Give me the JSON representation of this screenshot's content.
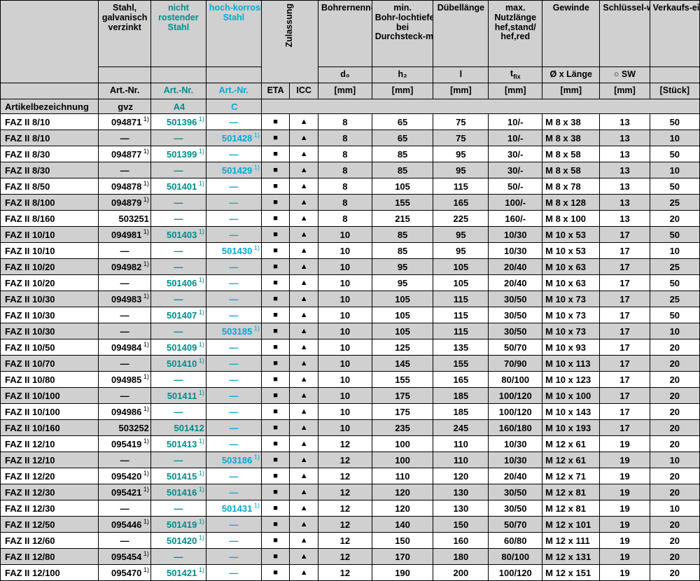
{
  "headers": {
    "h0": "",
    "h1": "Stahl, galvanisch verzinkt",
    "h2": "nicht rostender Stahl",
    "h3": "hoch-korrosions-beständiger Stahl",
    "h4": "Zulassung",
    "h5": "Bohrernenn-durchmes-ser",
    "h6": "min. Bohr-lochtiefe bei Durchsteck-montage",
    "h7": "Dübellänge",
    "h8": "max. Nutzlänge hef,stand/ hef,red",
    "h9": "Gewinde",
    "h10": "Schlüssel-weite",
    "h11": "Verkaufs-einheit",
    "sym_d0": "d₀",
    "sym_h2": "h₂",
    "sym_l": "l",
    "sym_tfix": "t",
    "sym_tfix_sub": "fix",
    "sym_oxl": "Ø x Länge",
    "sym_sw": "○ SW",
    "art": "Art.-Nr.",
    "eta": "ETA",
    "icc": "ICC",
    "mm": "[mm]",
    "stk": "[Stück]",
    "gvz": "gvz",
    "a4": "A4",
    "cc": "C",
    "artlabel": "Artikelbezeichnung"
  },
  "note": "1)",
  "square": "■",
  "triangle": "▲",
  "dash": "—",
  "rows": [
    {
      "n": "FAZ II 8/10",
      "g": "094871",
      "gN": true,
      "a": "501396",
      "aN": true,
      "c": "—",
      "cN": false,
      "eta": true,
      "icc": true,
      "d0": "8",
      "h2": "65",
      "l": "75",
      "tf": "10/-",
      "gw": "M 8 x 38",
      "sw": "13",
      "ve": "50"
    },
    {
      "n": "FAZ II 8/10",
      "g": "—",
      "gN": false,
      "a": "—",
      "aN": false,
      "c": "501428",
      "cN": true,
      "eta": true,
      "icc": true,
      "d0": "8",
      "h2": "65",
      "l": "75",
      "tf": "10/-",
      "gw": "M 8 x 38",
      "sw": "13",
      "ve": "10"
    },
    {
      "n": "FAZ II 8/30",
      "g": "094877",
      "gN": true,
      "a": "501399",
      "aN": true,
      "c": "—",
      "cN": false,
      "eta": true,
      "icc": true,
      "d0": "8",
      "h2": "85",
      "l": "95",
      "tf": "30/-",
      "gw": "M 8 x 58",
      "sw": "13",
      "ve": "50"
    },
    {
      "n": "FAZ II 8/30",
      "g": "—",
      "gN": false,
      "a": "—",
      "aN": false,
      "c": "501429",
      "cN": true,
      "eta": true,
      "icc": true,
      "d0": "8",
      "h2": "85",
      "l": "95",
      "tf": "30/-",
      "gw": "M 8 x 58",
      "sw": "13",
      "ve": "10"
    },
    {
      "n": "FAZ II 8/50",
      "g": "094878",
      "gN": true,
      "a": "501401",
      "aN": true,
      "c": "—",
      "cN": false,
      "eta": true,
      "icc": true,
      "d0": "8",
      "h2": "105",
      "l": "115",
      "tf": "50/-",
      "gw": "M 8 x 78",
      "sw": "13",
      "ve": "50"
    },
    {
      "n": "FAZ II 8/100",
      "g": "094879",
      "gN": true,
      "a": "—",
      "aN": false,
      "c": "—",
      "cN": false,
      "eta": true,
      "icc": true,
      "d0": "8",
      "h2": "155",
      "l": "165",
      "tf": "100/-",
      "gw": "M 8 x 128",
      "sw": "13",
      "ve": "25"
    },
    {
      "n": "FAZ II 8/160",
      "g": "503251",
      "gN": false,
      "a": "—",
      "aN": false,
      "c": "—",
      "cN": false,
      "eta": true,
      "icc": true,
      "d0": "8",
      "h2": "215",
      "l": "225",
      "tf": "160/-",
      "gw": "M 8 x 100",
      "sw": "13",
      "ve": "20"
    },
    {
      "n": "FAZ II 10/10",
      "g": "094981",
      "gN": true,
      "a": "501403",
      "aN": true,
      "c": "—",
      "cN": false,
      "eta": true,
      "icc": true,
      "d0": "10",
      "h2": "85",
      "l": "95",
      "tf": "10/30",
      "gw": "M 10 x 53",
      "sw": "17",
      "ve": "50"
    },
    {
      "n": "FAZ II 10/10",
      "g": "—",
      "gN": false,
      "a": "—",
      "aN": false,
      "c": "501430",
      "cN": true,
      "eta": true,
      "icc": true,
      "d0": "10",
      "h2": "85",
      "l": "95",
      "tf": "10/30",
      "gw": "M 10 x 53",
      "sw": "17",
      "ve": "10"
    },
    {
      "n": "FAZ II 10/20",
      "g": "094982",
      "gN": true,
      "a": "—",
      "aN": false,
      "c": "—",
      "cN": false,
      "eta": true,
      "icc": true,
      "d0": "10",
      "h2": "95",
      "l": "105",
      "tf": "20/40",
      "gw": "M 10 x 63",
      "sw": "17",
      "ve": "25"
    },
    {
      "n": "FAZ II 10/20",
      "g": "—",
      "gN": false,
      "a": "501406",
      "aN": true,
      "c": "—",
      "cN": false,
      "eta": true,
      "icc": true,
      "d0": "10",
      "h2": "95",
      "l": "105",
      "tf": "20/40",
      "gw": "M 10 x 63",
      "sw": "17",
      "ve": "50"
    },
    {
      "n": "FAZ II 10/30",
      "g": "094983",
      "gN": true,
      "a": "—",
      "aN": false,
      "c": "—",
      "cN": false,
      "eta": true,
      "icc": true,
      "d0": "10",
      "h2": "105",
      "l": "115",
      "tf": "30/50",
      "gw": "M 10 x 73",
      "sw": "17",
      "ve": "25"
    },
    {
      "n": "FAZ II 10/30",
      "g": "—",
      "gN": false,
      "a": "501407",
      "aN": true,
      "c": "—",
      "cN": false,
      "eta": true,
      "icc": true,
      "d0": "10",
      "h2": "105",
      "l": "115",
      "tf": "30/50",
      "gw": "M 10 x 73",
      "sw": "17",
      "ve": "50"
    },
    {
      "n": "FAZ II 10/30",
      "g": "—",
      "gN": false,
      "a": "—",
      "aN": false,
      "c": "503185",
      "cN": true,
      "eta": true,
      "icc": true,
      "d0": "10",
      "h2": "105",
      "l": "115",
      "tf": "30/50",
      "gw": "M 10 x 73",
      "sw": "17",
      "ve": "10"
    },
    {
      "n": "FAZ II 10/50",
      "g": "094984",
      "gN": true,
      "a": "501409",
      "aN": true,
      "c": "—",
      "cN": false,
      "eta": true,
      "icc": true,
      "d0": "10",
      "h2": "125",
      "l": "135",
      "tf": "50/70",
      "gw": "M 10 x 93",
      "sw": "17",
      "ve": "20"
    },
    {
      "n": "FAZ II 10/70",
      "g": "—",
      "gN": false,
      "a": "501410",
      "aN": true,
      "c": "—",
      "cN": false,
      "eta": true,
      "icc": true,
      "d0": "10",
      "h2": "145",
      "l": "155",
      "tf": "70/90",
      "gw": "M 10 x 113",
      "sw": "17",
      "ve": "20"
    },
    {
      "n": "FAZ II 10/80",
      "g": "094985",
      "gN": true,
      "a": "—",
      "aN": false,
      "c": "—",
      "cN": false,
      "eta": true,
      "icc": true,
      "d0": "10",
      "h2": "155",
      "l": "165",
      "tf": "80/100",
      "gw": "M 10 x 123",
      "sw": "17",
      "ve": "20"
    },
    {
      "n": "FAZ II 10/100",
      "g": "—",
      "gN": false,
      "a": "501411",
      "aN": true,
      "c": "—",
      "cN": false,
      "eta": true,
      "icc": true,
      "d0": "10",
      "h2": "175",
      "l": "185",
      "tf": "100/120",
      "gw": "M 10 x 100",
      "sw": "17",
      "ve": "20"
    },
    {
      "n": "FAZ II 10/100",
      "g": "094986",
      "gN": true,
      "a": "—",
      "aN": false,
      "c": "—",
      "cN": false,
      "eta": true,
      "icc": true,
      "d0": "10",
      "h2": "175",
      "l": "185",
      "tf": "100/120",
      "gw": "M 10 x 143",
      "sw": "17",
      "ve": "20"
    },
    {
      "n": "FAZ II 10/160",
      "g": "503252",
      "gN": false,
      "a": "501412",
      "aN": false,
      "c": "—",
      "cN": false,
      "eta": true,
      "icc": true,
      "d0": "10",
      "h2": "235",
      "l": "245",
      "tf": "160/180",
      "gw": "M 10 x 193",
      "sw": "17",
      "ve": "20"
    },
    {
      "n": "FAZ II 12/10",
      "g": "095419",
      "gN": true,
      "a": "501413",
      "aN": true,
      "c": "—",
      "cN": false,
      "eta": true,
      "icc": true,
      "d0": "12",
      "h2": "100",
      "l": "110",
      "tf": "10/30",
      "gw": "M 12 x 61",
      "sw": "19",
      "ve": "20"
    },
    {
      "n": "FAZ II 12/10",
      "g": "—",
      "gN": false,
      "a": "—",
      "aN": false,
      "c": "503186",
      "cN": true,
      "eta": true,
      "icc": true,
      "d0": "12",
      "h2": "100",
      "l": "110",
      "tf": "10/30",
      "gw": "M 12 x 61",
      "sw": "19",
      "ve": "10"
    },
    {
      "n": "FAZ II 12/20",
      "g": "095420",
      "gN": true,
      "a": "501415",
      "aN": true,
      "c": "—",
      "cN": false,
      "eta": true,
      "icc": true,
      "d0": "12",
      "h2": "110",
      "l": "120",
      "tf": "20/40",
      "gw": "M 12 x 71",
      "sw": "19",
      "ve": "20"
    },
    {
      "n": "FAZ II 12/30",
      "g": "095421",
      "gN": true,
      "a": "501416",
      "aN": true,
      "c": "—",
      "cN": false,
      "eta": true,
      "icc": true,
      "d0": "12",
      "h2": "120",
      "l": "130",
      "tf": "30/50",
      "gw": "M 12 x 81",
      "sw": "19",
      "ve": "20"
    },
    {
      "n": "FAZ II 12/30",
      "g": "—",
      "gN": false,
      "a": "—",
      "aN": false,
      "c": "501431",
      "cN": true,
      "eta": true,
      "icc": true,
      "d0": "12",
      "h2": "120",
      "l": "130",
      "tf": "30/50",
      "gw": "M 12 x 81",
      "sw": "19",
      "ve": "10"
    },
    {
      "n": "FAZ II 12/50",
      "g": "095446",
      "gN": true,
      "a": "501419",
      "aN": true,
      "c": "—",
      "cN": false,
      "eta": true,
      "icc": true,
      "d0": "12",
      "h2": "140",
      "l": "150",
      "tf": "50/70",
      "gw": "M 12 x 101",
      "sw": "19",
      "ve": "20"
    },
    {
      "n": "FAZ II 12/60",
      "g": "—",
      "gN": false,
      "a": "501420",
      "aN": true,
      "c": "—",
      "cN": false,
      "eta": true,
      "icc": true,
      "d0": "12",
      "h2": "150",
      "l": "160",
      "tf": "60/80",
      "gw": "M 12 x 111",
      "sw": "19",
      "ve": "20"
    },
    {
      "n": "FAZ II 12/80",
      "g": "095454",
      "gN": true,
      "a": "—",
      "aN": false,
      "c": "—",
      "cN": false,
      "eta": true,
      "icc": true,
      "d0": "12",
      "h2": "170",
      "l": "180",
      "tf": "80/100",
      "gw": "M 12 x 131",
      "sw": "19",
      "ve": "20"
    },
    {
      "n": "FAZ II 12/100",
      "g": "095470",
      "gN": true,
      "a": "501421",
      "aN": true,
      "c": "—",
      "cN": false,
      "eta": true,
      "icc": true,
      "d0": "12",
      "h2": "190",
      "l": "200",
      "tf": "100/120",
      "gw": "M 12 x 151",
      "sw": "19",
      "ve": "20"
    }
  ]
}
